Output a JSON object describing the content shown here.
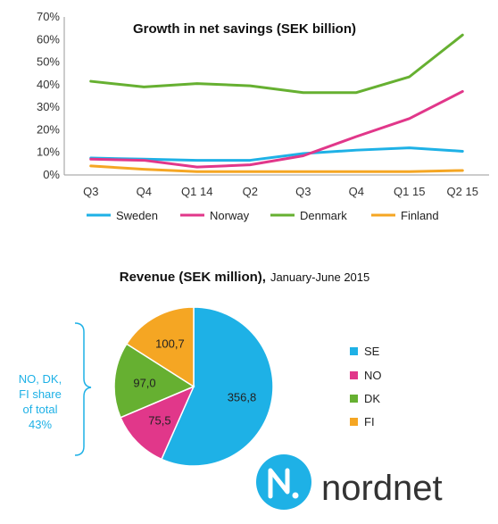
{
  "chart_data": [
    {
      "type": "line",
      "title": "Growth in net savings (SEK billion)",
      "categories": [
        "Q3",
        "Q4",
        "Q1 14",
        "Q2",
        "Q3",
        "Q4",
        "Q1 15",
        "Q2 15"
      ],
      "y_ticks": [
        "0%",
        "10%",
        "20%",
        "30%",
        "40%",
        "50%",
        "60%",
        "70%"
      ],
      "ylim": [
        0,
        70
      ],
      "grid": false,
      "legend_position": "bottom",
      "series": [
        {
          "name": "Sweden",
          "color": "#1EB1E6",
          "values": [
            7.5,
            7,
            6.5,
            6.5,
            9.5,
            11,
            12,
            10.5
          ]
        },
        {
          "name": "Norway",
          "color": "#E1378A",
          "values": [
            7,
            6.5,
            3.5,
            4.5,
            8.5,
            17,
            25,
            37
          ]
        },
        {
          "name": "Denmark",
          "color": "#66B031",
          "values": [
            41.5,
            39,
            40.5,
            39.5,
            36.5,
            36.5,
            43.5,
            62
          ]
        },
        {
          "name": "Finland",
          "color": "#F5A623",
          "values": [
            4,
            2.5,
            1.5,
            1.5,
            1.5,
            1.5,
            1.5,
            2
          ]
        }
      ]
    },
    {
      "type": "pie",
      "title": "Revenue (SEK million),",
      "subtitle": "January-June 2015",
      "legend_position": "right",
      "slices": [
        {
          "name": "SE",
          "value": 356.8,
          "label": "356,8",
          "color": "#1EB1E6"
        },
        {
          "name": "NO",
          "value": 75.5,
          "label": "75,5",
          "color": "#E1378A"
        },
        {
          "name": "DK",
          "value": 97.0,
          "label": "97,0",
          "color": "#66B031"
        },
        {
          "name": "FI",
          "value": 100.7,
          "label": "100,7",
          "color": "#F5A623"
        }
      ],
      "annotation_lines": [
        "NO, DK,",
        "FI share",
        "of total",
        "43%"
      ],
      "annotation_color": "#1EB1E6"
    }
  ],
  "logo": {
    "text": "nordnet",
    "color": "#1EB1E6"
  }
}
